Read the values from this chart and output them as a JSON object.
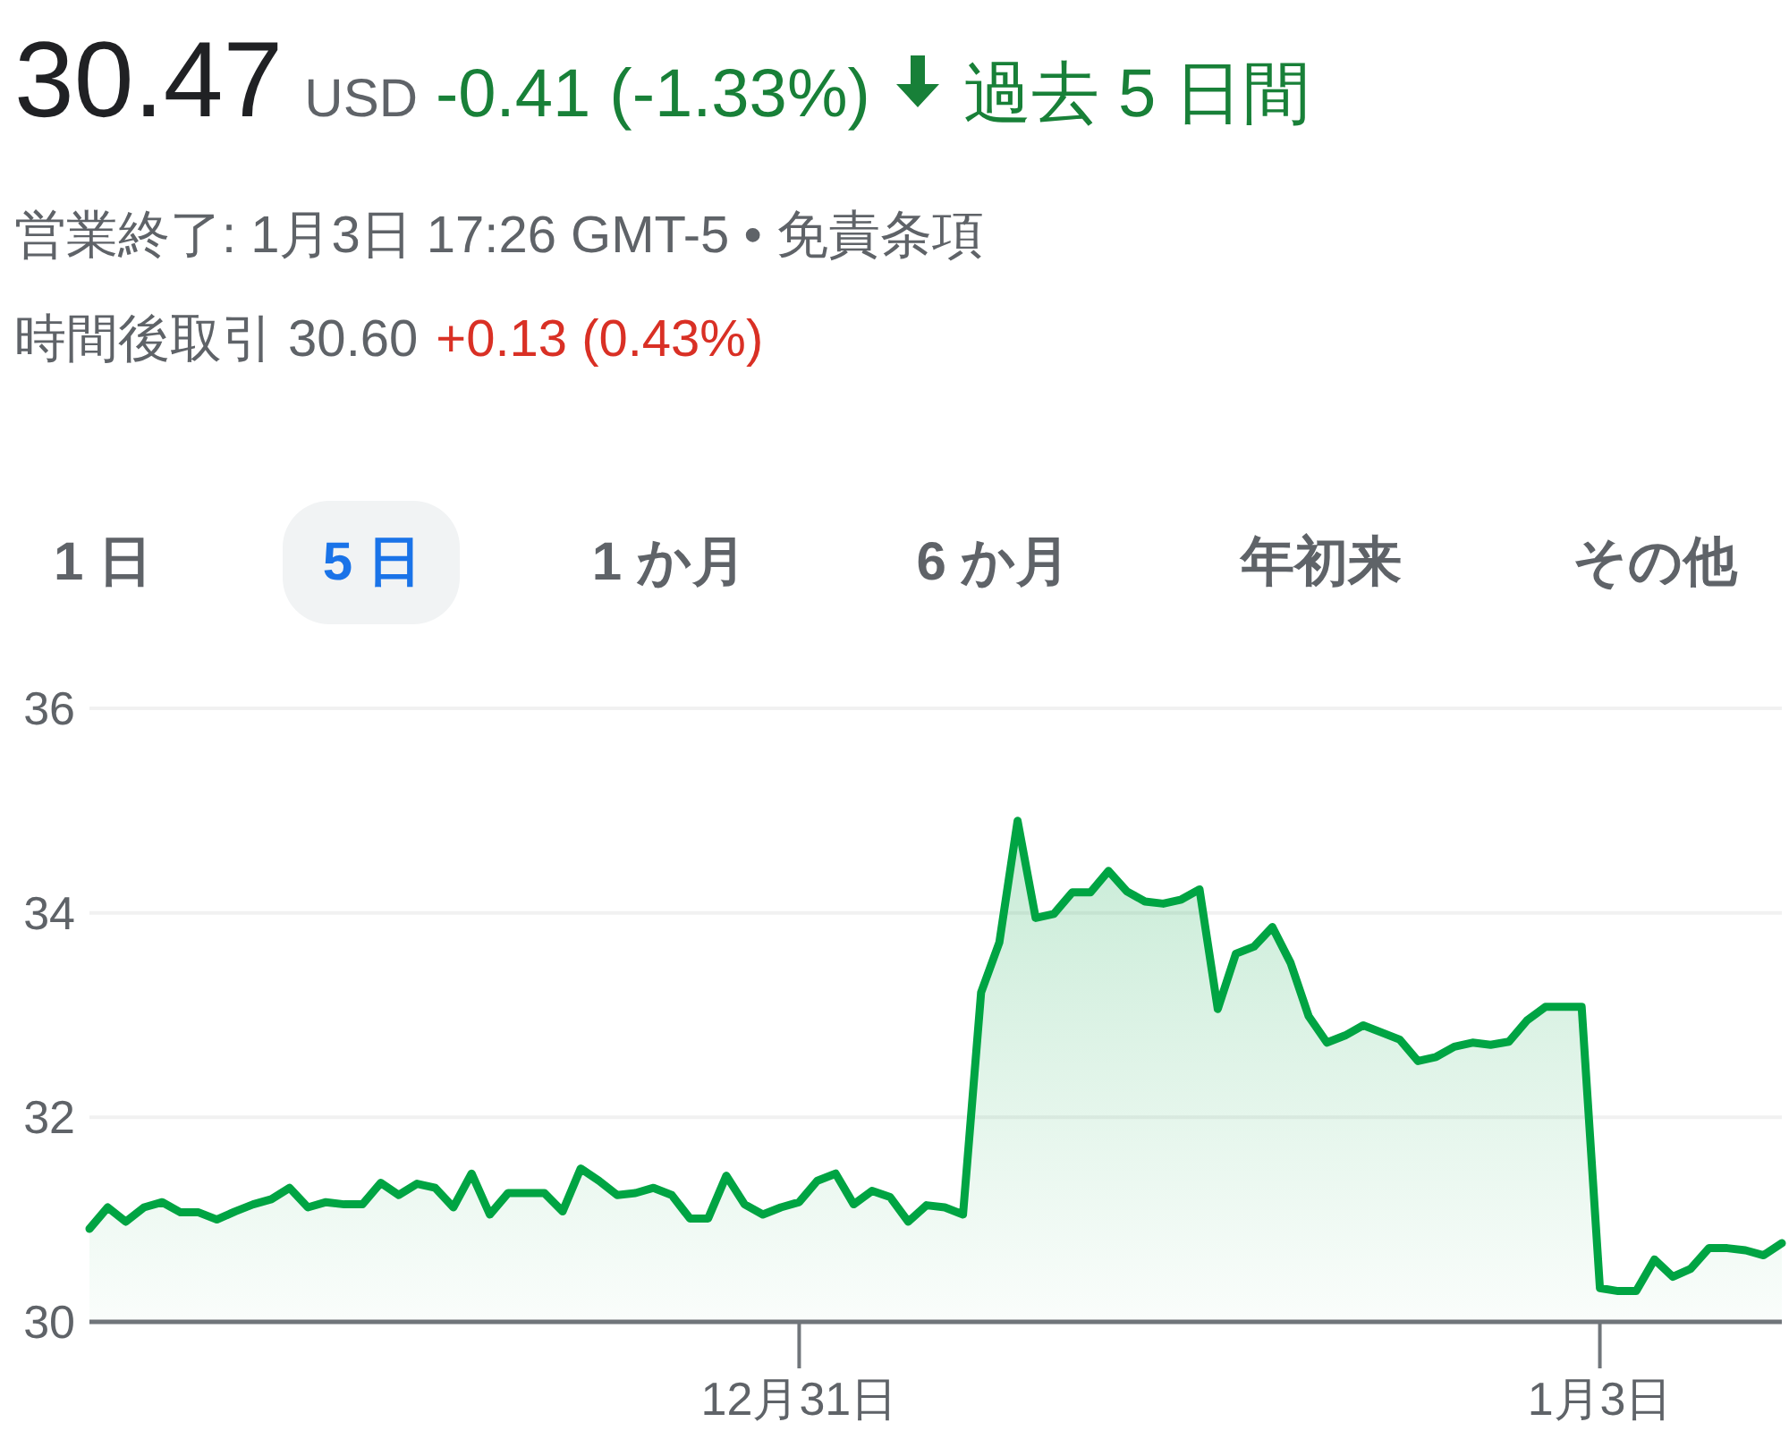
{
  "chart_data": {
    "type": "area",
    "annotations": [
      "30.47",
      "USD",
      "-0.41 (-1.33%)",
      "過去 5 日間",
      "営業終了: 1月3日 17:26 GMT-5 • 免責条項",
      "時間後取引 30.60",
      "+0.13 (0.43%)",
      "1 日",
      "5 日",
      "1 か月",
      "6 か月",
      "年初来",
      "その他"
    ],
    "categories": [
      null,
      null,
      null,
      null,
      null,
      null,
      null,
      null,
      null,
      null,
      null,
      null,
      null,
      null,
      null,
      null,
      null,
      null,
      null,
      null,
      null,
      null,
      null,
      null,
      null,
      null,
      null,
      null,
      null,
      null,
      null,
      null,
      null,
      null,
      null,
      null,
      null,
      null,
      null,
      "12月31日",
      null,
      null,
      null,
      null,
      null,
      null,
      null,
      null,
      null,
      null,
      null,
      null,
      null,
      null,
      null,
      null,
      null,
      null,
      null,
      null,
      null,
      null,
      null,
      null,
      null,
      null,
      null,
      null,
      null,
      null,
      null,
      null,
      null,
      null,
      null,
      null,
      null,
      null,
      null,
      null,
      null,
      null,
      null,
      "1月3日",
      null,
      null,
      null,
      null,
      null,
      null,
      null,
      null,
      null,
      null
    ],
    "series": [
      {
        "color": "#00a443",
        "values": [
          30.91,
          31.12,
          30.98,
          31.12,
          31.17,
          31.07,
          31.07,
          31.0,
          31.08,
          31.15,
          31.2,
          31.31,
          31.12,
          31.17,
          31.15,
          31.15,
          31.36,
          31.24,
          31.35,
          31.31,
          31.12,
          31.45,
          31.05,
          31.26,
          31.26,
          31.26,
          31.08,
          31.5,
          31.38,
          31.24,
          31.26,
          31.31,
          31.24,
          31.01,
          31.01,
          31.43,
          31.15,
          31.05,
          31.12,
          31.17,
          31.38,
          31.45,
          31.15,
          31.28,
          31.22,
          30.98,
          31.14,
          31.12,
          31.05,
          33.22,
          33.71,
          34.9,
          33.95,
          33.99,
          34.2,
          34.2,
          34.41,
          34.21,
          34.11,
          34.09,
          34.13,
          34.23,
          33.06,
          33.6,
          33.67,
          33.86,
          33.51,
          32.99,
          32.73,
          32.8,
          32.9,
          32.83,
          32.76,
          32.55,
          32.59,
          32.69,
          32.73,
          32.71,
          32.74,
          32.95,
          33.08,
          33.08,
          33.08,
          30.33,
          30.3,
          30.3,
          30.61,
          30.44,
          30.52,
          30.72,
          30.72,
          30.7,
          30.65,
          30.77
        ]
      }
    ],
    "ylim": [
      30,
      36
    ],
    "yticks": [
      30,
      32,
      34,
      36
    ],
    "grid": "y"
  }
}
